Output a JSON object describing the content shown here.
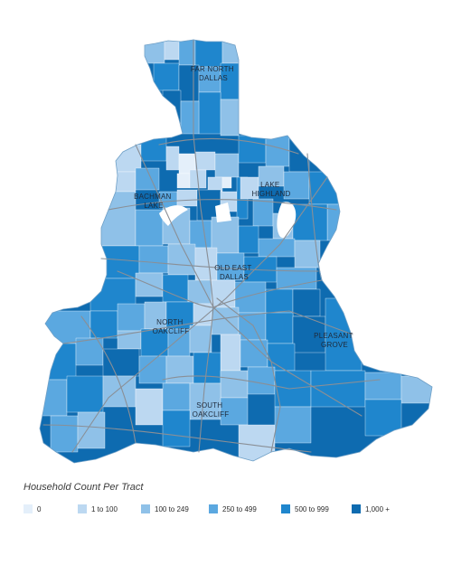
{
  "map": {
    "labels": {
      "far_north": [
        "FAR NORTH",
        "DALLAS"
      ],
      "lake_highland": [
        "LAKE",
        "HIGHLAND"
      ],
      "bachman": [
        "BACHMAN",
        "LAKE"
      ],
      "old_east": [
        "OLD EAST",
        "DALLAS"
      ],
      "north_oakcliff": [
        "NORTH",
        "OAKCLIFF"
      ],
      "pleasant_grove": [
        "PLEASANT",
        "GROVE"
      ],
      "south_oakcliff": [
        "SOUTH",
        "OAKCLIFF"
      ]
    },
    "colors": {
      "c0": "#e4effa",
      "c1": "#bcd8f1",
      "c2": "#8fc1e8",
      "c3": "#5ba8e0",
      "c4": "#1f86cd",
      "c5": "#0e6bb0",
      "road": "#8a8f96",
      "water": "#ffffff"
    }
  },
  "legend": {
    "title": "Household Count Per Tract",
    "items": [
      {
        "label": "0",
        "color": "#e4effa"
      },
      {
        "label": "1 to 100",
        "color": "#bcd8f1"
      },
      {
        "label": "100 to 249",
        "color": "#8fc1e8"
      },
      {
        "label": "250 to 499",
        "color": "#5ba8e0"
      },
      {
        "label": "500 to 999",
        "color": "#1f86cd"
      },
      {
        "label": "1,000 +",
        "color": "#0e6bb0"
      }
    ]
  }
}
